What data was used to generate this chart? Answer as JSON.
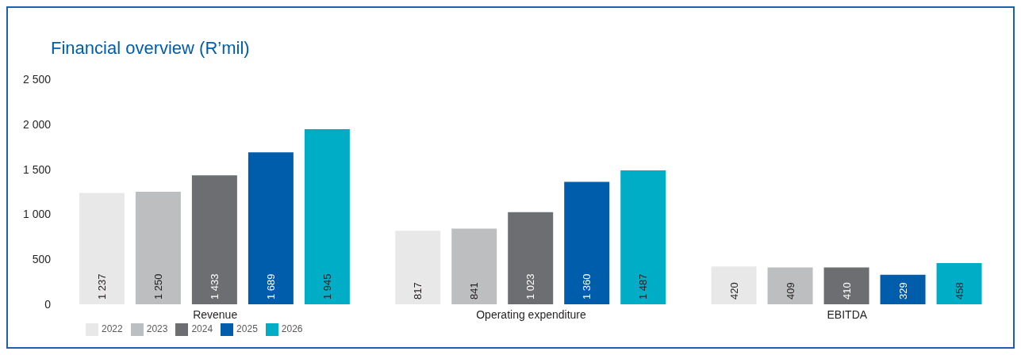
{
  "chart_data": {
    "type": "bar",
    "title": "Financial overview (R’mil)",
    "categories": [
      "Revenue",
      "Operating expenditure",
      "EBITDA"
    ],
    "series": [
      {
        "name": "2022",
        "color": "#e8e8e8",
        "values": [
          1237,
          817,
          420
        ],
        "value_labels": [
          "1 237",
          "817",
          "420"
        ]
      },
      {
        "name": "2023",
        "color": "#bdbec0",
        "values": [
          1250,
          841,
          409
        ],
        "value_labels": [
          "1 250",
          "841",
          "409"
        ]
      },
      {
        "name": "2024",
        "color": "#6d6e71",
        "values": [
          1433,
          1023,
          410
        ],
        "value_labels": [
          "1 433",
          "1 023",
          "410"
        ]
      },
      {
        "name": "2025",
        "color": "#005dab",
        "values": [
          1689,
          1360,
          329
        ],
        "value_labels": [
          "1 689",
          "1 360",
          "329"
        ]
      },
      {
        "name": "2026",
        "color": "#00adc6",
        "values": [
          1945,
          1487,
          458
        ],
        "value_labels": [
          "1 945",
          "1 487",
          "458"
        ]
      }
    ],
    "ylim": [
      0,
      2500
    ],
    "yticks": [
      0,
      500,
      {
        "value": 1000,
        "label": "1 000"
      },
      {
        "value": 1500,
        "label": "1 500"
      },
      {
        "value": 2000,
        "label": "2 000"
      },
      {
        "value": 2500,
        "label": "2 500"
      }
    ],
    "grid": false,
    "legend": "bottom left"
  }
}
